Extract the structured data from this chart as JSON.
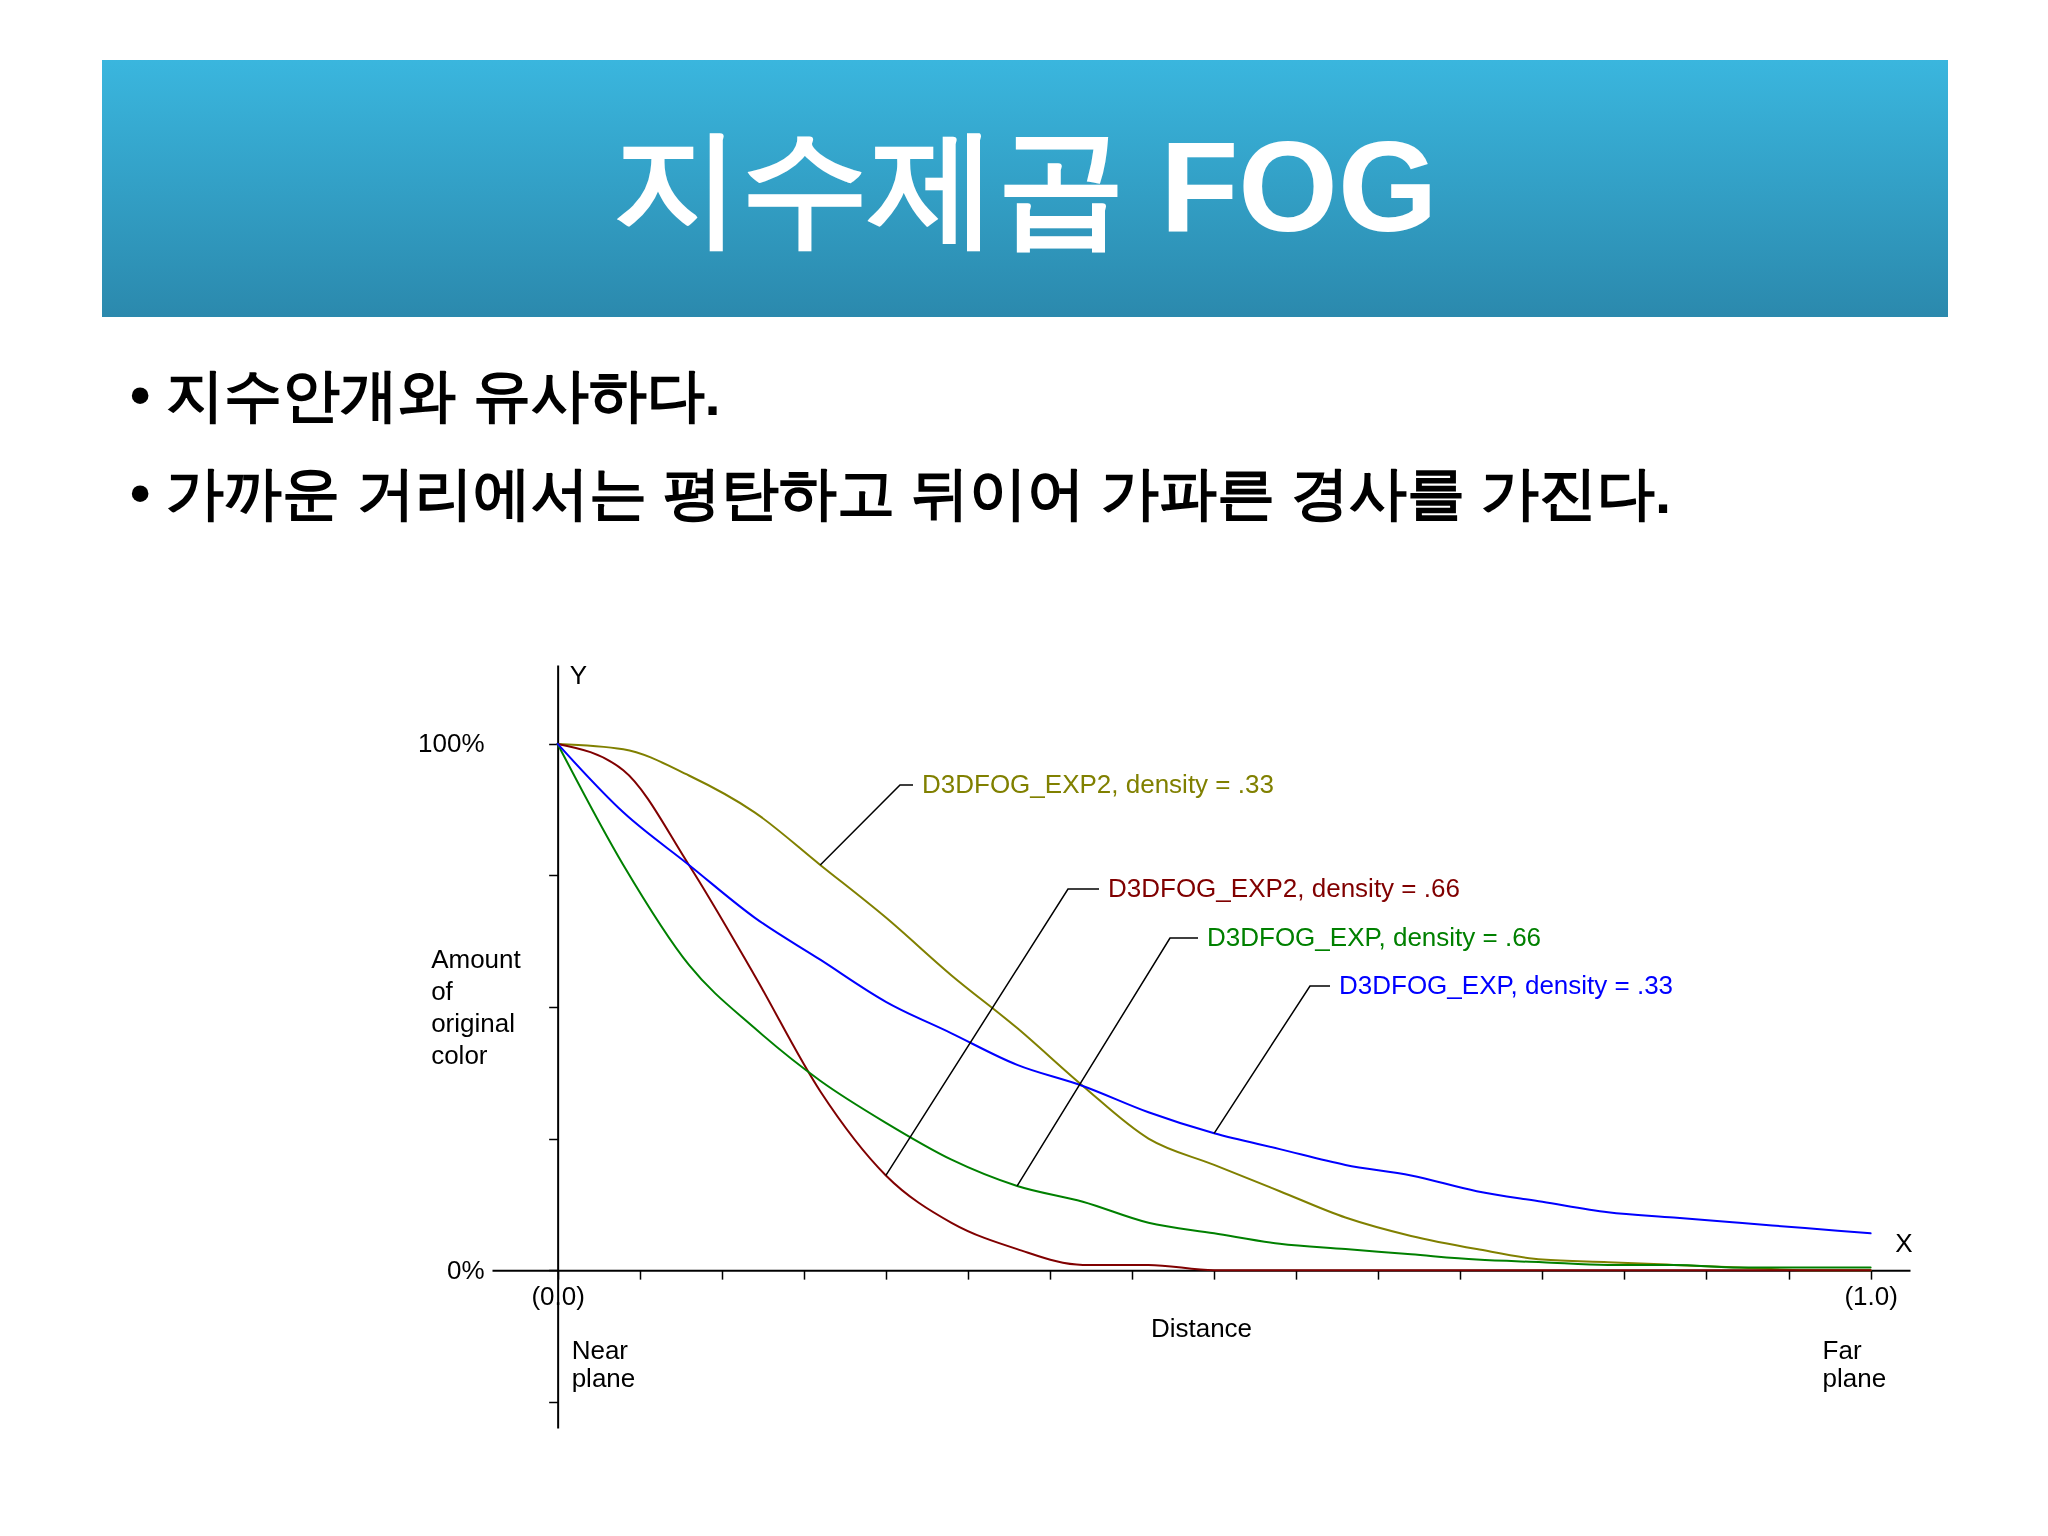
{
  "chart_data": {
    "type": "line",
    "title": "지수제곱 FOG",
    "xlabel": "Distance",
    "ylabel": "Amount of original color",
    "annotations": [
      "• 지수안개와 유사하다.",
      "• 가까운 거리에서는 평탄하고 뒤이어 가파른 경사를 가진다.",
      "Y",
      "X",
      "Near plane",
      "Far plane"
    ],
    "x": [
      0,
      0.05,
      0.1,
      0.15,
      0.2,
      0.25,
      0.3,
      0.35,
      0.4,
      0.45,
      0.5,
      0.55,
      0.6,
      0.65,
      0.7,
      0.75,
      0.8,
      0.85,
      0.9,
      0.95,
      1
    ],
    "series": [
      {
        "name": "D3DFOG_EXP2, density = .33",
        "color": "#808000",
        "values": [
          100,
          99,
          94,
          87,
          77,
          67,
          56,
          46,
          35,
          25,
          20,
          15,
          10,
          6.5,
          4,
          2,
          1.5,
          1,
          0.5,
          0,
          0
        ]
      },
      {
        "name": "D3DFOG_EXP2, density = .66",
        "color": "#800000",
        "values": [
          100,
          95,
          77,
          56,
          34,
          18,
          9,
          4,
          1,
          1,
          0,
          0,
          0,
          0,
          0,
          0,
          0,
          0,
          0,
          0,
          0
        ]
      },
      {
        "name": "D3DFOG_EXP, density = .66",
        "color": "#008000",
        "values": [
          100,
          77,
          58,
          46,
          36,
          28,
          21,
          16,
          13,
          9,
          7,
          5,
          4,
          3,
          2,
          1.5,
          1,
          1,
          0.5,
          0.5,
          0.5
        ]
      },
      {
        "name": "D3DFOG_EXP, density = .33",
        "color": "#0000ff",
        "values": [
          100,
          87,
          77,
          67,
          59,
          51,
          45,
          39,
          35,
          30,
          26,
          23,
          20,
          18,
          15,
          13,
          11,
          10,
          9,
          8,
          7
        ]
      }
    ],
    "xlim": [
      -0.05,
      1.03
    ],
    "ylim": [
      -30,
      115
    ],
    "xticks": [
      {
        "value": 0,
        "label": "(0.0)"
      },
      {
        "value": 0.0625,
        "label": null
      },
      {
        "value": 0.125,
        "label": null
      },
      {
        "value": 0.1875,
        "label": null
      },
      {
        "value": 0.25,
        "label": null
      },
      {
        "value": 0.3125,
        "label": null
      },
      {
        "value": 0.375,
        "label": null
      },
      {
        "value": 0.4375,
        "label": null
      },
      {
        "value": 0.5,
        "label": null
      },
      {
        "value": 0.5625,
        "label": null
      },
      {
        "value": 0.625,
        "label": null
      },
      {
        "value": 0.6875,
        "label": null
      },
      {
        "value": 0.75,
        "label": null
      },
      {
        "value": 0.8125,
        "label": null
      },
      {
        "value": 0.875,
        "label": null
      },
      {
        "value": 0.9375,
        "label": null
      },
      {
        "value": 1,
        "label": "(1.0)"
      }
    ],
    "yticks": [
      {
        "value": -25,
        "label": null
      },
      {
        "value": 0,
        "label": "0%"
      },
      {
        "value": 25,
        "label": null
      },
      {
        "value": 50,
        "label": null
      },
      {
        "value": 75,
        "label": null
      },
      {
        "value": 100,
        "label": "100%"
      }
    ]
  }
}
